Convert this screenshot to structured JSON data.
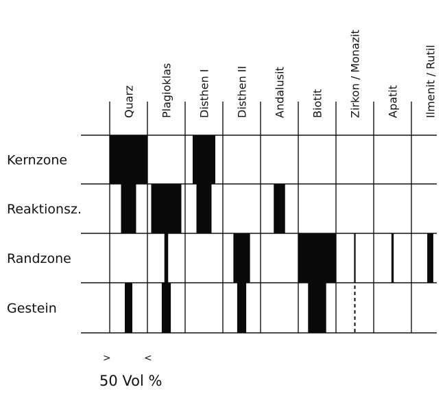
{
  "chart_data": {
    "type": "table",
    "unit_label": "50 Vol %",
    "scale_marks": [
      ">",
      "<"
    ],
    "rows": [
      "Kernzone",
      "Reaktionsz.",
      "Randzone",
      "Gestein"
    ],
    "columns": [
      "Quarz",
      "Plagioklas",
      "Disthen I",
      "Disthen II",
      "Andalusit",
      "Biotit",
      "Zirkon / Monazit",
      "Apatit",
      "Ilmenit / Rutil"
    ],
    "values_vol_percent": {
      "Kernzone": {
        "Quarz": 50,
        "Plagioklas": 0,
        "Disthen I": 30,
        "Disthen II": 0,
        "Andalusit": 0,
        "Biotit": 0,
        "Zirkon / Monazit": 0,
        "Apatit": 0,
        "Ilmenit / Rutil": 0
      },
      "Reaktionsz.": {
        "Quarz": 20,
        "Plagioklas": 40,
        "Disthen I": 20,
        "Disthen II": 0,
        "Andalusit": 15,
        "Biotit": 0,
        "Zirkon / Monazit": 0,
        "Apatit": 0,
        "Ilmenit / Rutil": 0
      },
      "Randzone": {
        "Quarz": 0,
        "Plagioklas": 5,
        "Disthen I": 0,
        "Disthen II": 22,
        "Andalusit": 0,
        "Biotit": 50,
        "Zirkon / Monazit": 2,
        "Apatit": 3,
        "Ilmenit / Rutil": 8
      },
      "Gestein": {
        "Quarz": 10,
        "Plagioklas": 12,
        "Disthen I": 0,
        "Disthen II": 12,
        "Andalusit": 0,
        "Biotit": 24,
        "Zirkon / Monazit": 0,
        "Apatit": 0,
        "Ilmenit / Rutil": 0
      }
    },
    "trace_marks": [
      {
        "row": "Gestein",
        "column": "Zirkon / Monazit",
        "style": "dashed"
      }
    ]
  }
}
